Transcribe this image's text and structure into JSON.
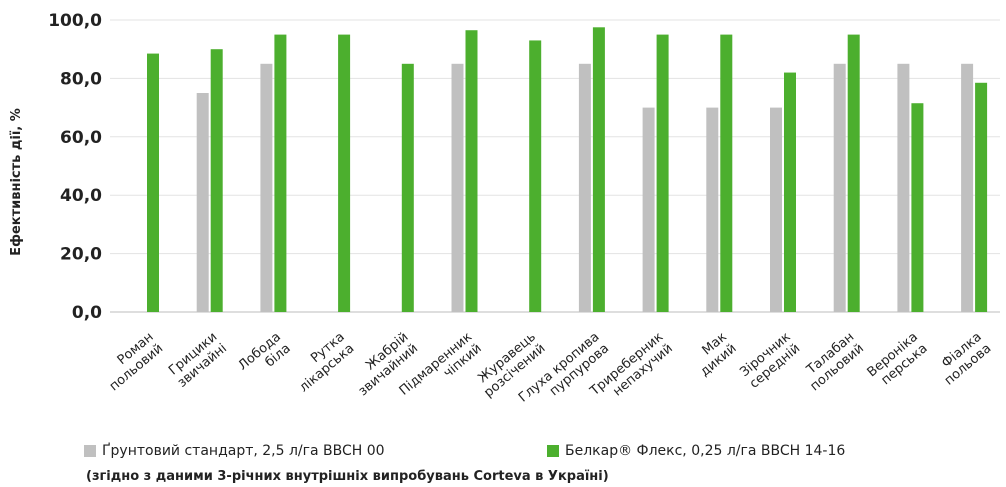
{
  "chart_data": {
    "type": "bar",
    "title": "",
    "ylabel": "Ефективність дії, %",
    "xlabel": "",
    "ylim": [
      0,
      100
    ],
    "yticks": [
      "0,0",
      "20,0",
      "40,0",
      "60,0",
      "80,0",
      "100,0"
    ],
    "grid": true,
    "legend_position": "bottom",
    "categories": [
      [
        "Роман",
        "польовий"
      ],
      [
        "Грицики",
        "звичайні"
      ],
      [
        "Лобода",
        "біла"
      ],
      [
        "Рутка",
        "лікарська"
      ],
      [
        "Жабрій",
        "звичайний"
      ],
      [
        "Підмаренник",
        "чіпкий"
      ],
      [
        "Журавець",
        "розсічений"
      ],
      [
        "Глуха кропива",
        "пурпурова"
      ],
      [
        "Триреберник",
        "непахучий"
      ],
      [
        "Мак",
        "дикий"
      ],
      [
        "Зірочник",
        "середній"
      ],
      [
        "Талабан",
        "польовий"
      ],
      [
        "Вероніка",
        "перська"
      ],
      [
        "Фіалка",
        "польова"
      ]
    ],
    "series": [
      {
        "name": "Ґрунтовий стандарт, 2,5 л/га BBCH 00",
        "color": "#c0c0c0",
        "values": [
          null,
          75,
          85,
          null,
          null,
          85,
          null,
          85,
          70,
          70,
          70,
          85,
          85,
          85
        ]
      },
      {
        "name": "Белкар® Флекс, 0,25 л/га BBCH 14-16",
        "color": "#4caf2e",
        "values": [
          88.5,
          90,
          95,
          95,
          85,
          96.5,
          93,
          97.5,
          95,
          95,
          82,
          95,
          71.5,
          78.5
        ]
      }
    ]
  },
  "footnote": "(згідно з даними 3-річних внутрішніх випробувань Corteva в Україні)"
}
